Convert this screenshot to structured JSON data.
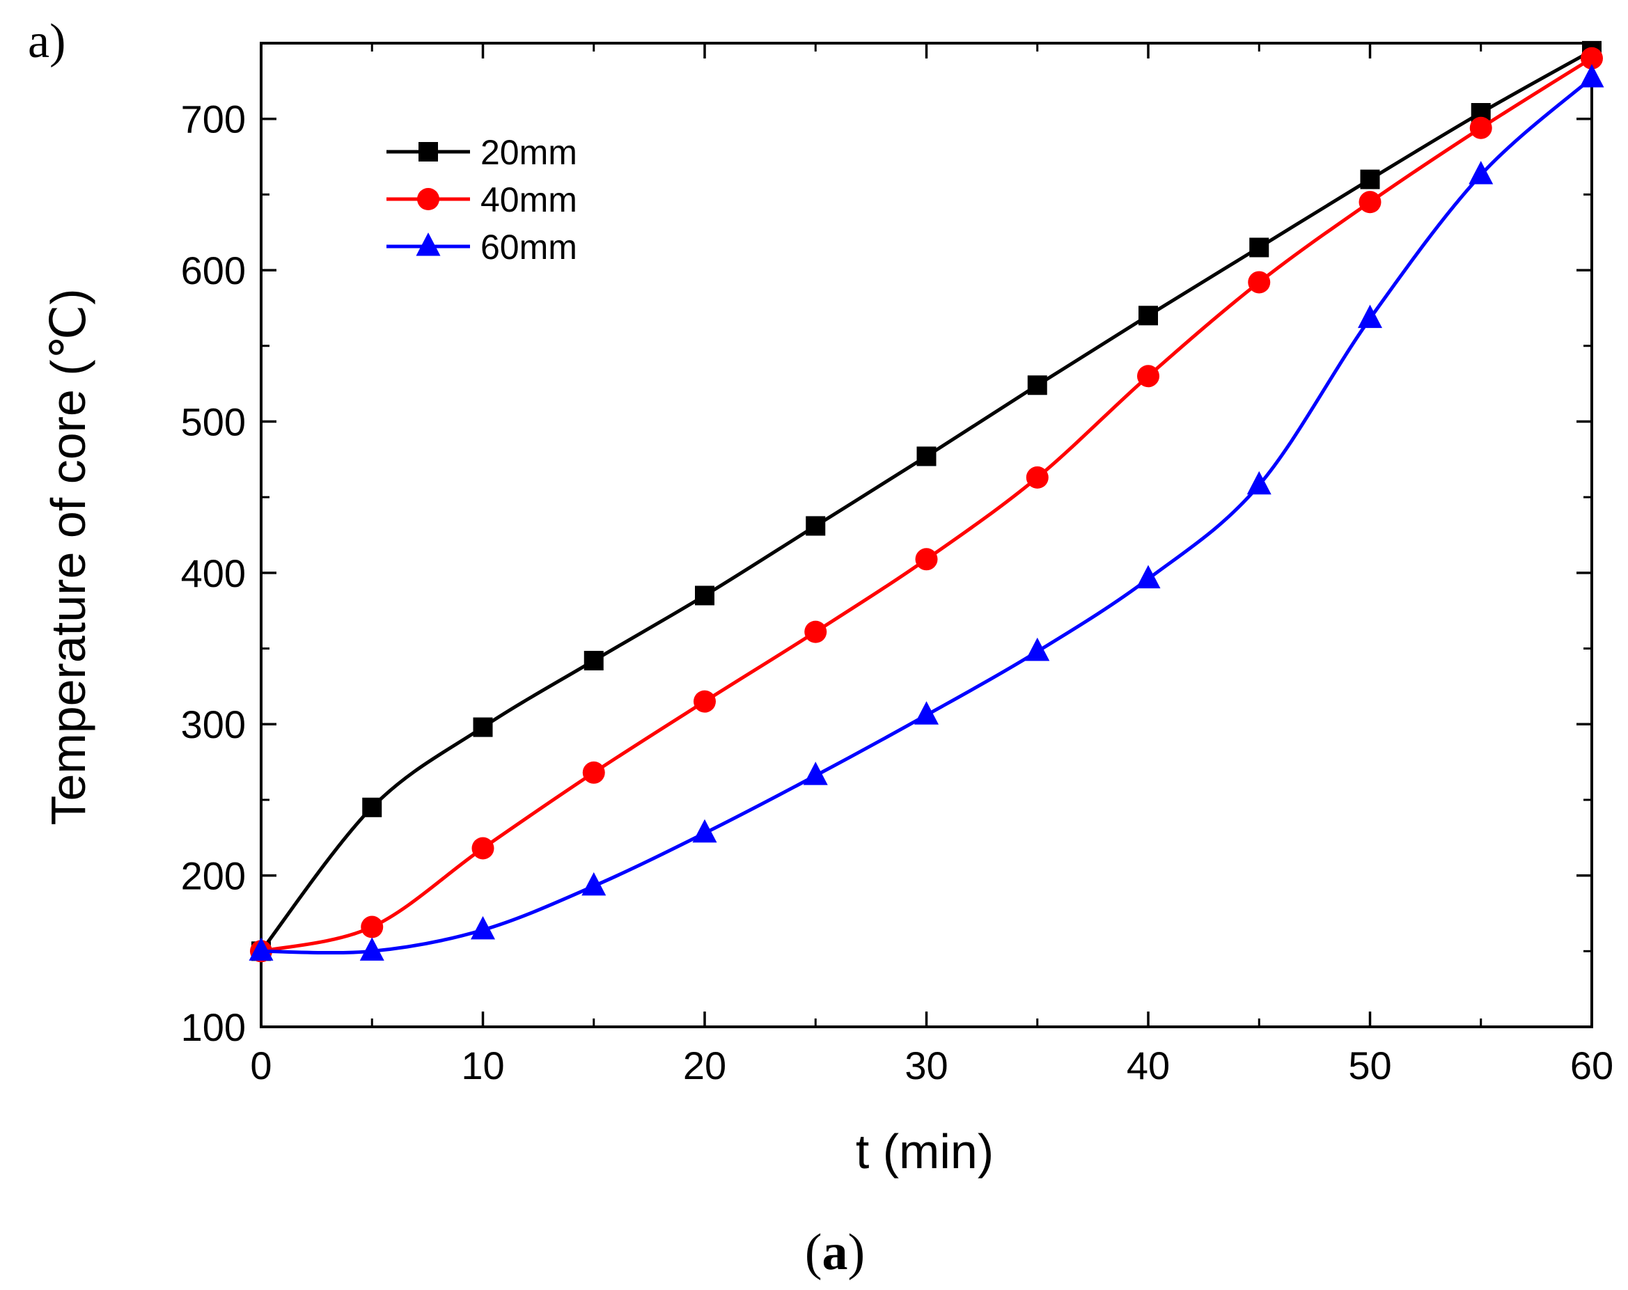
{
  "panel_label": "a)",
  "caption": {
    "open": "(",
    "letter": "a",
    "close": ")"
  },
  "colors": {
    "20mm": "#000000",
    "40mm": "#ff0000",
    "60mm": "#0000ff",
    "axis": "#000000"
  },
  "chart_data": {
    "type": "line",
    "title": "",
    "xlabel": "t (min)",
    "ylabel": "Temperature of core (℃)",
    "xlim": [
      0,
      60
    ],
    "ylim": [
      100,
      750
    ],
    "xticks": [
      0,
      10,
      20,
      30,
      40,
      50,
      60
    ],
    "yticks": [
      100,
      200,
      300,
      400,
      500,
      600,
      700
    ],
    "legend_position": "top-left",
    "series": [
      {
        "name": "20mm",
        "marker": "square",
        "color": "#000000",
        "x": [
          0,
          5,
          10,
          15,
          20,
          25,
          30,
          35,
          40,
          45,
          50,
          55,
          60
        ],
        "y": [
          150,
          245,
          298,
          342,
          385,
          431,
          477,
          524,
          570,
          615,
          660,
          704,
          745
        ]
      },
      {
        "name": "40mm",
        "marker": "circle",
        "color": "#ff0000",
        "x": [
          0,
          5,
          10,
          15,
          20,
          25,
          30,
          35,
          40,
          45,
          50,
          55,
          60
        ],
        "y": [
          150,
          166,
          218,
          268,
          315,
          361,
          409,
          463,
          530,
          592,
          645,
          694,
          740
        ]
      },
      {
        "name": "60mm",
        "marker": "triangle",
        "color": "#0000ff",
        "x": [
          0,
          5,
          10,
          15,
          20,
          25,
          30,
          35,
          40,
          45,
          50,
          55,
          60
        ],
        "y": [
          150,
          150,
          164,
          193,
          228,
          266,
          306,
          348,
          396,
          458,
          568,
          663,
          727
        ]
      }
    ]
  }
}
